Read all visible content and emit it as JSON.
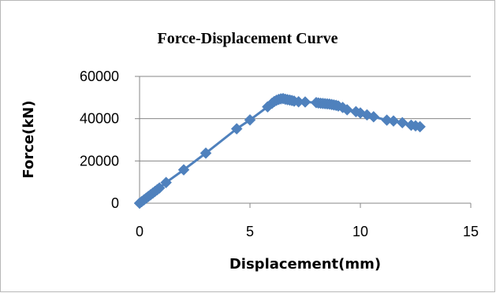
{
  "chart_data": {
    "type": "line",
    "title": "Force-Displacement Curve",
    "xlabel": "Displacement(mm)",
    "ylabel": "Force(kN)",
    "xlim": [
      0,
      15
    ],
    "ylim": [
      0,
      60000
    ],
    "x_ticks": [
      0,
      5,
      10,
      15
    ],
    "y_ticks": [
      0,
      20000,
      40000,
      60000
    ],
    "x_tick_labels": [
      "0",
      "5",
      "10",
      "15"
    ],
    "y_tick_labels": [
      "0",
      "20000",
      "40000",
      "60000"
    ],
    "grid": "horizontal",
    "legend": "none",
    "marker": "diamond",
    "colors": {
      "series": "#4f81bd",
      "grid": "#878787",
      "axis": "#878787",
      "frame": "#b8b8b8"
    },
    "series": [
      {
        "x": [
          0,
          0.1,
          0.2,
          0.3,
          0.4,
          0.5,
          0.6,
          0.7,
          0.8,
          0.9,
          1.2,
          2.0,
          3.0,
          4.4,
          5.0,
          5.8,
          6.0,
          6.1,
          6.2,
          6.3,
          6.4,
          6.5,
          6.6,
          6.7,
          6.8,
          6.9,
          7.0,
          7.2,
          7.5,
          8.0,
          8.1,
          8.2,
          8.3,
          8.4,
          8.5,
          8.6,
          8.7,
          8.8,
          8.9,
          9.0,
          9.2,
          9.4,
          9.8,
          10.0,
          10.3,
          10.6,
          11.2,
          11.5,
          11.9,
          12.3,
          12.5,
          12.7
        ],
        "y": [
          0,
          800,
          1600,
          2400,
          3200,
          4000,
          4800,
          5600,
          6400,
          7200,
          9800,
          15800,
          23700,
          35200,
          39400,
          45600,
          47300,
          48100,
          48700,
          49100,
          49400,
          49500,
          49200,
          49000,
          48800,
          48600,
          48300,
          48000,
          47900,
          47600,
          47400,
          47300,
          47200,
          47100,
          47000,
          46900,
          46700,
          46500,
          46300,
          46000,
          45300,
          44200,
          43300,
          42700,
          41800,
          40900,
          39300,
          38900,
          38100,
          36900,
          36600,
          36200
        ]
      }
    ]
  }
}
